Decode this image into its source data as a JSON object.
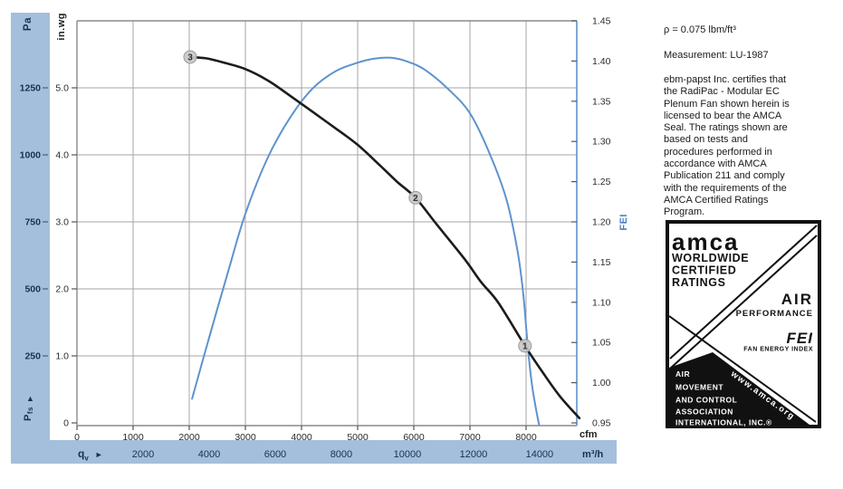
{
  "page": {
    "bg": "#ffffff"
  },
  "right_panel": {
    "density": "ρ = 0.075 lbm/ft³",
    "measurement": "Measurement: LU-1987",
    "certification": "ebm-papst Inc. certifies that\nthe RadiPac - Modular EC\nPlenum Fan shown herein is\nlicensed to bear the AMCA\nSeal. The ratings shown are\nbased on tests and\nprocedures performed in\naccordance with AMCA\nPublication 211 and comply\nwith the requirements of the\nAMCA Certified Ratings\nProgram."
  },
  "seal": {
    "amca": "amca",
    "worldwide": "WORLDWIDE",
    "certified": "CERTIFIED",
    "ratings": "RATINGS",
    "air": "AIR",
    "performance": "PERFORMANCE",
    "fei": "FEI",
    "fan_energy_index": "FAN ENERGY INDEX",
    "url": "www.amca.org",
    "assoc": [
      "AIR",
      "MOVEMENT",
      "AND CONTROL",
      "ASSOCIATION",
      "INTERNATIONAL, INC.®"
    ]
  },
  "chart_data": {
    "type": "line",
    "title": "",
    "x_axis": {
      "unit_primary": "cfm",
      "unit_secondary": "m³/h",
      "flow_symbol_base": "q",
      "flow_symbol_sub": "v",
      "arrow_right": "►",
      "cfm_max": 8903,
      "cfm_ticks": [
        {
          "v": 0,
          "t": "0"
        },
        {
          "v": 1000,
          "t": "1000"
        },
        {
          "v": 2000,
          "t": "2000"
        },
        {
          "v": 3000,
          "t": "3000"
        },
        {
          "v": 4000,
          "t": "4000"
        },
        {
          "v": 5000,
          "t": "5000"
        },
        {
          "v": 6000,
          "t": "6000"
        },
        {
          "v": 7000,
          "t": "7000"
        },
        {
          "v": 8000,
          "t": "8000"
        }
      ],
      "m3h_ticks": [
        {
          "v": 2000,
          "t": "2000"
        },
        {
          "v": 4000,
          "t": "4000"
        },
        {
          "v": 6000,
          "t": "6000"
        },
        {
          "v": 8000,
          "t": "8000"
        },
        {
          "v": 10000,
          "t": "10000"
        },
        {
          "v": 12000,
          "t": "12000"
        },
        {
          "v": 14000,
          "t": "14000"
        }
      ]
    },
    "y_left": {
      "unit_pa": "Pa",
      "unit_inwg": "in.wg",
      "pressure_symbol_base": "P",
      "pressure_symbol_sub": "fs",
      "arrow_up": "▲",
      "inwg_max": 6.0,
      "pa_ticks": [
        {
          "v": 1250,
          "t": "1250"
        },
        {
          "v": 1000,
          "t": "1000"
        },
        {
          "v": 750,
          "t": "750"
        },
        {
          "v": 500,
          "t": "500"
        },
        {
          "v": 250,
          "t": "250"
        }
      ],
      "inwg_ticks": [
        {
          "v": 5.0,
          "t": "5.0"
        },
        {
          "v": 4.0,
          "t": "4.0"
        },
        {
          "v": 3.0,
          "t": "3.0"
        },
        {
          "v": 2.0,
          "t": "2.0"
        },
        {
          "v": 1.0,
          "t": "1.0"
        },
        {
          "v": 0,
          "t": "0"
        }
      ]
    },
    "y_right": {
      "label": "FEI",
      "min": 0.95,
      "max": 1.45,
      "ticks": [
        {
          "v": 1.45,
          "t": "1.45"
        },
        {
          "v": 1.4,
          "t": "1.40"
        },
        {
          "v": 1.35,
          "t": "1.35"
        },
        {
          "v": 1.3,
          "t": "1.30"
        },
        {
          "v": 1.25,
          "t": "1.25"
        },
        {
          "v": 1.2,
          "t": "1.20"
        },
        {
          "v": 1.15,
          "t": "1.15"
        },
        {
          "v": 1.1,
          "t": "1.10"
        },
        {
          "v": 1.05,
          "t": "1.05"
        },
        {
          "v": 1.0,
          "t": "1.00"
        },
        {
          "v": 0.95,
          "t": "0.95"
        }
      ]
    },
    "series": [
      {
        "name": "fei_curve",
        "y_axis": "fei",
        "color": "#5e93cd",
        "width": 2,
        "points": [
          [
            2050,
            0.98
          ],
          [
            2350,
            1.055
          ],
          [
            2700,
            1.14
          ],
          [
            3000,
            1.21
          ],
          [
            3400,
            1.28
          ],
          [
            3800,
            1.33
          ],
          [
            4200,
            1.366
          ],
          [
            4600,
            1.387
          ],
          [
            5000,
            1.398
          ],
          [
            5300,
            1.403
          ],
          [
            5600,
            1.404
          ],
          [
            5900,
            1.399
          ],
          [
            6200,
            1.389
          ],
          [
            6600,
            1.366
          ],
          [
            7000,
            1.335
          ],
          [
            7350,
            1.285
          ],
          [
            7650,
            1.228
          ],
          [
            7850,
            1.163
          ],
          [
            7950,
            1.11
          ],
          [
            8030,
            1.045
          ],
          [
            8100,
            1.0
          ],
          [
            8170,
            0.97
          ],
          [
            8230,
            0.948
          ]
        ]
      },
      {
        "name": "fan_static_pressure_curve",
        "y_axis": "inwg",
        "color": "#1c1c1c",
        "width": 2.6,
        "points": [
          [
            2016,
            5.46
          ],
          [
            2300,
            5.44
          ],
          [
            2600,
            5.38
          ],
          [
            3000,
            5.28
          ],
          [
            3400,
            5.11
          ],
          [
            3800,
            4.88
          ],
          [
            4200,
            4.64
          ],
          [
            4600,
            4.4
          ],
          [
            5000,
            4.15
          ],
          [
            5400,
            3.84
          ],
          [
            5700,
            3.6
          ],
          [
            6030,
            3.36
          ],
          [
            6400,
            2.97
          ],
          [
            6900,
            2.45
          ],
          [
            7200,
            2.1
          ],
          [
            7500,
            1.8
          ],
          [
            7980,
            1.15
          ],
          [
            8300,
            0.75
          ],
          [
            8600,
            0.4
          ],
          [
            8950,
            0.07
          ]
        ]
      }
    ],
    "markers": [
      {
        "label": "3",
        "cfm": 2016,
        "inwg": 5.46
      },
      {
        "label": "2",
        "cfm": 6030,
        "inwg": 3.36
      },
      {
        "label": "1",
        "cfm": 7980,
        "inwg": 1.15
      }
    ],
    "colors": {
      "grid": "#a6a6a6",
      "frame": "#8a8a8a",
      "right_axis": "#5e93cd",
      "tick_text": "#2b2b2b",
      "navy": "#1b2f55",
      "band": "#a4bfdc",
      "marker_fill": "#c9c9c9",
      "marker_stroke": "#9a9a9a"
    }
  }
}
